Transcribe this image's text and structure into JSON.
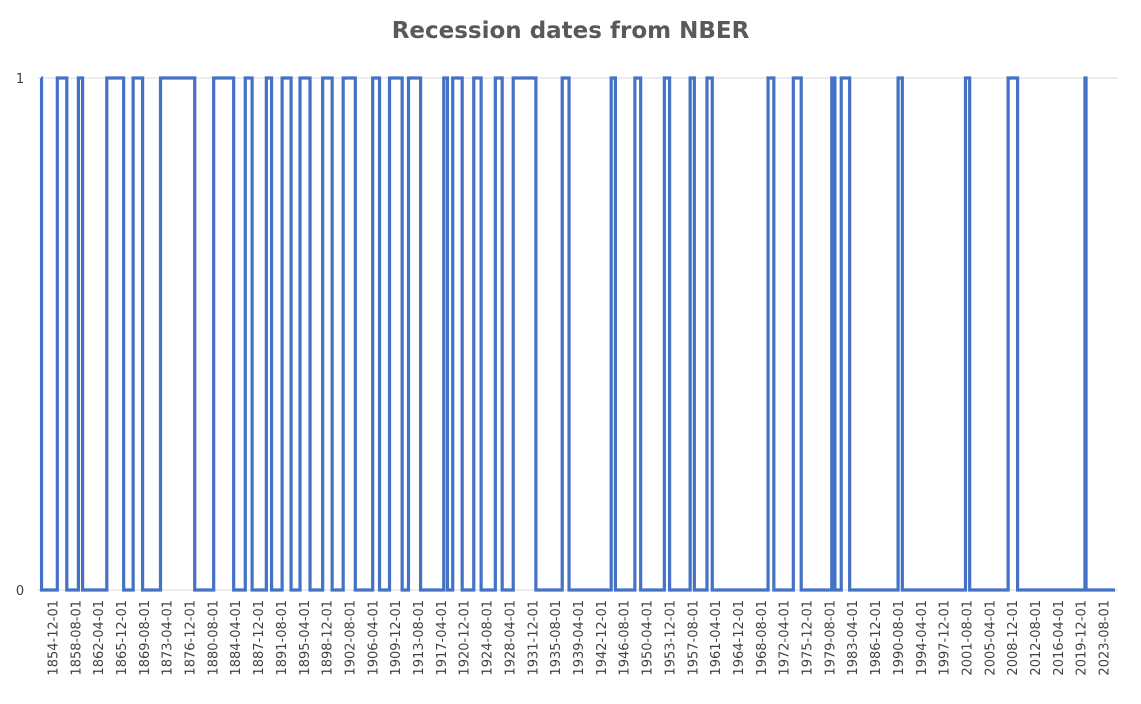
{
  "chart_data": {
    "type": "line",
    "title": "Recession dates from NBER",
    "xlabel": "",
    "ylabel": "",
    "ylim": [
      0,
      1
    ],
    "y_ticks": [
      "0",
      "1"
    ],
    "grid": "horizontal",
    "legend": "none",
    "x_tick_labels": [
      "1854-12-01",
      "1858-08-01",
      "1862-04-01",
      "1865-12-01",
      "1869-08-01",
      "1873-04-01",
      "1876-12-01",
      "1880-08-01",
      "1884-04-01",
      "1887-12-01",
      "1891-08-01",
      "1895-04-01",
      "1898-12-01",
      "1902-08-01",
      "1906-04-01",
      "1909-12-01",
      "1913-08-01",
      "1917-04-01",
      "1920-12-01",
      "1924-08-01",
      "1928-04-01",
      "1931-12-01",
      "1935-08-01",
      "1939-04-01",
      "1942-12-01",
      "1946-08-01",
      "1950-04-01",
      "1953-12-01",
      "1957-08-01",
      "1961-04-01",
      "1964-12-01",
      "1968-08-01",
      "1972-04-01",
      "1975-12-01",
      "1979-08-01",
      "1983-04-01",
      "1986-12-01",
      "1990-08-01",
      "1994-04-01",
      "1997-12-01",
      "2001-08-01",
      "2005-04-01",
      "2008-12-01",
      "2012-08-01",
      "2016-04-01",
      "2019-12-01",
      "2023-08-01"
    ],
    "x_range": [
      "1854-12",
      "2024-12"
    ],
    "series": [
      {
        "color": "#4472C4",
        "recession_periods": [
          [
            "1854-12",
            "1854-12"
          ],
          [
            "1857-07",
            "1858-12"
          ],
          [
            "1860-11",
            "1861-06"
          ],
          [
            "1865-05",
            "1867-12"
          ],
          [
            "1869-07",
            "1870-12"
          ],
          [
            "1873-11",
            "1879-03"
          ],
          [
            "1882-04",
            "1885-05"
          ],
          [
            "1887-04",
            "1888-04"
          ],
          [
            "1890-08",
            "1891-05"
          ],
          [
            "1893-02",
            "1894-06"
          ],
          [
            "1895-12",
            "1897-06"
          ],
          [
            "1899-07",
            "1900-12"
          ],
          [
            "1902-10",
            "1904-08"
          ],
          [
            "1907-06",
            "1908-06"
          ],
          [
            "1910-02",
            "1912-01"
          ],
          [
            "1913-02",
            "1914-12"
          ],
          [
            "1918-09",
            "1919-03"
          ],
          [
            "1920-02",
            "1921-07"
          ],
          [
            "1923-06",
            "1924-07"
          ],
          [
            "1926-11",
            "1927-11"
          ],
          [
            "1929-09",
            "1933-03"
          ],
          [
            "1937-06",
            "1938-06"
          ],
          [
            "1945-03",
            "1945-10"
          ],
          [
            "1948-12",
            "1949-10"
          ],
          [
            "1953-08",
            "1954-05"
          ],
          [
            "1957-09",
            "1958-04"
          ],
          [
            "1960-05",
            "1961-02"
          ],
          [
            "1970-01",
            "1970-11"
          ],
          [
            "1974-01",
            "1975-03"
          ],
          [
            "1980-02",
            "1980-07"
          ],
          [
            "1981-08",
            "1982-11"
          ],
          [
            "1990-08",
            "1991-03"
          ],
          [
            "2001-04",
            "2001-11"
          ],
          [
            "2008-01",
            "2009-06"
          ],
          [
            "2020-03",
            "2020-04"
          ]
        ]
      }
    ]
  }
}
